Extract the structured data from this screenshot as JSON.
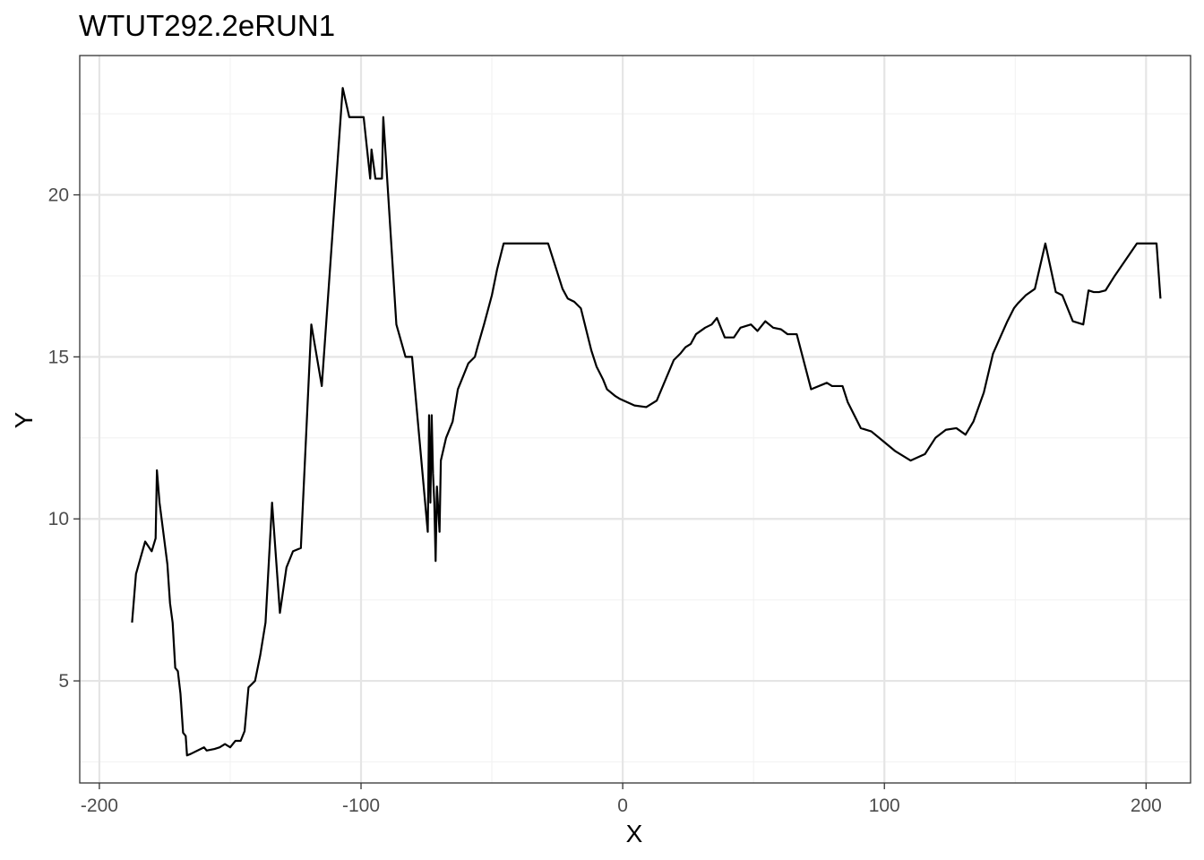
{
  "chart_data": {
    "type": "line",
    "title": "WTUT292.2eRUN1",
    "xlabel": "X",
    "ylabel": "Y",
    "xlim": [
      -207.5,
      217
    ],
    "ylim": [
      1.85,
      24.3
    ],
    "x_ticks": [
      -200,
      -100,
      0,
      100,
      200
    ],
    "x_tick_labels": [
      "-200",
      "-100",
      "0",
      "100",
      "200"
    ],
    "y_ticks": [
      5,
      10,
      15,
      20
    ],
    "y_tick_labels": [
      "5",
      "10",
      "15",
      "20"
    ],
    "grid": true,
    "legend": "none",
    "colors": {
      "line": "#000000",
      "grid_major": "#e5e5e5",
      "grid_minor": "#f2f2f2",
      "panel_border": "#333333",
      "background": "#ffffff"
    },
    "series": [
      {
        "points": [
          [
            -187.5,
            6.8
          ],
          [
            -186,
            8.3
          ],
          [
            -182.5,
            9.3
          ],
          [
            -180,
            9.0
          ],
          [
            -178.5,
            9.4
          ],
          [
            -178,
            11.5
          ],
          [
            -177,
            10.5
          ],
          [
            -174,
            8.6
          ],
          [
            -173,
            7.4
          ],
          [
            -172,
            6.8
          ],
          [
            -171,
            5.4
          ],
          [
            -170,
            5.3
          ],
          [
            -169,
            4.6
          ],
          [
            -168,
            3.4
          ],
          [
            -167,
            3.3
          ],
          [
            -166.5,
            2.7
          ],
          [
            -165,
            2.75
          ],
          [
            -160,
            2.95
          ],
          [
            -159,
            2.85
          ],
          [
            -156,
            2.9
          ],
          [
            -154,
            2.95
          ],
          [
            -152,
            3.05
          ],
          [
            -150,
            2.95
          ],
          [
            -148,
            3.15
          ],
          [
            -146,
            3.15
          ],
          [
            -144.5,
            3.45
          ],
          [
            -143,
            4.8
          ],
          [
            -140.5,
            5.0
          ],
          [
            -138.5,
            5.8
          ],
          [
            -136.5,
            6.8
          ],
          [
            -134,
            10.5
          ],
          [
            -131,
            7.1
          ],
          [
            -128.5,
            8.5
          ],
          [
            -126,
            9.0
          ],
          [
            -123,
            9.1
          ],
          [
            -119,
            16.0
          ],
          [
            -115,
            14.1
          ],
          [
            -107,
            23.3
          ],
          [
            -104.5,
            22.4
          ],
          [
            -101.5,
            22.4
          ],
          [
            -99,
            22.4
          ],
          [
            -96.5,
            20.5
          ],
          [
            -96,
            21.4
          ],
          [
            -94.5,
            20.5
          ],
          [
            -92,
            20.5
          ],
          [
            -91.5,
            22.4
          ],
          [
            -86.5,
            16.0
          ],
          [
            -83,
            15.0
          ],
          [
            -80.5,
            15.0
          ],
          [
            -74.5,
            9.6
          ],
          [
            -74,
            13.2
          ],
          [
            -73.5,
            10.5
          ],
          [
            -73,
            13.2
          ],
          [
            -72.5,
            11.4
          ],
          [
            -72,
            10.5
          ],
          [
            -71.5,
            8.7
          ],
          [
            -71,
            11.0
          ],
          [
            -70,
            9.6
          ],
          [
            -69.5,
            11.8
          ],
          [
            -67.5,
            12.5
          ],
          [
            -65,
            13.0
          ],
          [
            -63,
            14.0
          ],
          [
            -59,
            14.8
          ],
          [
            -56.5,
            15.0
          ],
          [
            -55.5,
            15.3
          ],
          [
            -53,
            16.0
          ],
          [
            -50,
            16.9
          ],
          [
            -48,
            17.7
          ],
          [
            -45.5,
            18.5
          ],
          [
            -28.5,
            18.5
          ],
          [
            -23,
            17.1
          ],
          [
            -21,
            16.8
          ],
          [
            -18.5,
            16.7
          ],
          [
            -16,
            16.5
          ],
          [
            -12,
            15.2
          ],
          [
            -10,
            14.7
          ],
          [
            -7.5,
            14.3
          ],
          [
            -6,
            14.0
          ],
          [
            -3,
            13.8
          ],
          [
            -1,
            13.7
          ],
          [
            4.5,
            13.5
          ],
          [
            9,
            13.45
          ],
          [
            13,
            13.65
          ],
          [
            19.5,
            14.9
          ],
          [
            22,
            15.1
          ],
          [
            24,
            15.3
          ],
          [
            26,
            15.4
          ],
          [
            28,
            15.7
          ],
          [
            31.5,
            15.9
          ],
          [
            34,
            16.0
          ],
          [
            36,
            16.2
          ],
          [
            39,
            15.6
          ],
          [
            42.5,
            15.6
          ],
          [
            45,
            15.9
          ],
          [
            49,
            16.0
          ],
          [
            51.5,
            15.8
          ],
          [
            54.5,
            16.1
          ],
          [
            57.5,
            15.9
          ],
          [
            60.5,
            15.85
          ],
          [
            63,
            15.7
          ],
          [
            66.5,
            15.7
          ],
          [
            72,
            14.0
          ],
          [
            78,
            14.2
          ],
          [
            80,
            14.1
          ],
          [
            82,
            14.1
          ],
          [
            84,
            14.1
          ],
          [
            86,
            13.6
          ],
          [
            91,
            12.8
          ],
          [
            95,
            12.7
          ],
          [
            99.5,
            12.4
          ],
          [
            104,
            12.1
          ],
          [
            110,
            11.8
          ],
          [
            115.5,
            12.0
          ],
          [
            119.5,
            12.5
          ],
          [
            123.5,
            12.75
          ],
          [
            127.5,
            12.8
          ],
          [
            131,
            12.6
          ],
          [
            134,
            13.0
          ],
          [
            138,
            13.9
          ],
          [
            141.5,
            15.1
          ],
          [
            147,
            16.1
          ],
          [
            149.5,
            16.5
          ],
          [
            151,
            16.65
          ],
          [
            154,
            16.9
          ],
          [
            157.5,
            17.1
          ],
          [
            161.5,
            18.5
          ],
          [
            165.5,
            17.0
          ],
          [
            168,
            16.9
          ],
          [
            172,
            16.1
          ],
          [
            176,
            16.0
          ],
          [
            178,
            17.05
          ],
          [
            180,
            17.0
          ],
          [
            182,
            17.0
          ],
          [
            184.5,
            17.05
          ],
          [
            188,
            17.5
          ],
          [
            196.5,
            18.5
          ],
          [
            204,
            18.5
          ],
          [
            205.5,
            16.8
          ]
        ]
      }
    ]
  }
}
